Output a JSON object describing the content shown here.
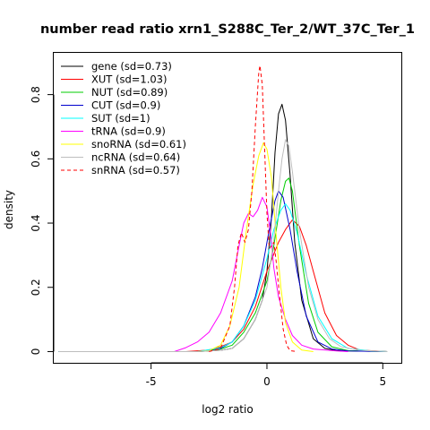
{
  "chart_data": {
    "type": "line",
    "title": "number read ratio xrn1_S288C_Ter_2/WT_37C_Ter_1",
    "xlabel": "log2 ratio",
    "ylabel": "density",
    "xlim": [
      -9.2,
      5.8
    ],
    "ylim": [
      -0.035,
      0.93
    ],
    "xticks": [
      -5,
      0,
      5
    ],
    "yticks": [
      0.0,
      0.2,
      0.4,
      0.6,
      0.8
    ],
    "grid": false,
    "legend_position": "top-left",
    "series": [
      {
        "name": "gene (sd=0.73)",
        "color": "#000000",
        "dash": "solid",
        "points": [
          [
            -9,
            0
          ],
          [
            -3,
            0
          ],
          [
            -2,
            0.004
          ],
          [
            -1.5,
            0.01
          ],
          [
            -1,
            0.04
          ],
          [
            -0.5,
            0.1
          ],
          [
            -0.2,
            0.16
          ],
          [
            0,
            0.25
          ],
          [
            0.2,
            0.42
          ],
          [
            0.35,
            0.62
          ],
          [
            0.5,
            0.74
          ],
          [
            0.65,
            0.77
          ],
          [
            0.8,
            0.72
          ],
          [
            1,
            0.55
          ],
          [
            1.2,
            0.34
          ],
          [
            1.5,
            0.16
          ],
          [
            2,
            0.04
          ],
          [
            2.5,
            0.01
          ],
          [
            3,
            0.003
          ],
          [
            5.2,
            0
          ]
        ]
      },
      {
        "name": "XUT (sd=1.03)",
        "color": "#ff0000",
        "dash": "solid",
        "points": [
          [
            -9,
            0
          ],
          [
            -3.5,
            0
          ],
          [
            -2.5,
            0.005
          ],
          [
            -2,
            0.015
          ],
          [
            -1.5,
            0.03
          ],
          [
            -1,
            0.07
          ],
          [
            -0.5,
            0.14
          ],
          [
            0,
            0.25
          ],
          [
            0.5,
            0.34
          ],
          [
            0.8,
            0.38
          ],
          [
            1.1,
            0.41
          ],
          [
            1.4,
            0.39
          ],
          [
            1.7,
            0.33
          ],
          [
            2,
            0.25
          ],
          [
            2.5,
            0.12
          ],
          [
            3,
            0.05
          ],
          [
            3.5,
            0.02
          ],
          [
            4,
            0.005
          ],
          [
            5.2,
            0
          ]
        ]
      },
      {
        "name": "NUT (sd=0.89)",
        "color": "#00cd00",
        "dash": "solid",
        "points": [
          [
            -9,
            0
          ],
          [
            -3,
            0
          ],
          [
            -2,
            0.008
          ],
          [
            -1.5,
            0.02
          ],
          [
            -1,
            0.06
          ],
          [
            -0.5,
            0.12
          ],
          [
            0,
            0.22
          ],
          [
            0.3,
            0.33
          ],
          [
            0.6,
            0.47
          ],
          [
            0.8,
            0.53
          ],
          [
            0.95,
            0.54
          ],
          [
            1.1,
            0.5
          ],
          [
            1.4,
            0.33
          ],
          [
            1.8,
            0.15
          ],
          [
            2.2,
            0.06
          ],
          [
            2.8,
            0.015
          ],
          [
            3.5,
            0.003
          ],
          [
            5.2,
            0
          ]
        ]
      },
      {
        "name": "CUT (sd=0.9)",
        "color": "#0000cd",
        "dash": "solid",
        "points": [
          [
            -9,
            0
          ],
          [
            -3,
            0
          ],
          [
            -2,
            0.01
          ],
          [
            -1.5,
            0.03
          ],
          [
            -1,
            0.08
          ],
          [
            -0.5,
            0.17
          ],
          [
            -0.2,
            0.26
          ],
          [
            0.1,
            0.38
          ],
          [
            0.35,
            0.47
          ],
          [
            0.5,
            0.5
          ],
          [
            0.7,
            0.48
          ],
          [
            1,
            0.38
          ],
          [
            1.3,
            0.25
          ],
          [
            1.7,
            0.11
          ],
          [
            2.2,
            0.03
          ],
          [
            2.8,
            0.008
          ],
          [
            3.5,
            0.002
          ],
          [
            5.2,
            0
          ]
        ]
      },
      {
        "name": "SUT (sd=1)",
        "color": "#00ffff",
        "dash": "solid",
        "points": [
          [
            -9,
            0
          ],
          [
            -3,
            0
          ],
          [
            -2,
            0.012
          ],
          [
            -1.5,
            0.03
          ],
          [
            -1,
            0.08
          ],
          [
            -0.5,
            0.16
          ],
          [
            0,
            0.29
          ],
          [
            0.3,
            0.38
          ],
          [
            0.6,
            0.44
          ],
          [
            0.8,
            0.46
          ],
          [
            1,
            0.44
          ],
          [
            1.3,
            0.37
          ],
          [
            1.7,
            0.24
          ],
          [
            2.2,
            0.11
          ],
          [
            2.8,
            0.04
          ],
          [
            3.5,
            0.01
          ],
          [
            4.5,
            0.002
          ],
          [
            5.2,
            0
          ]
        ]
      },
      {
        "name": "tRNA (sd=0.9)",
        "color": "#ff00ff",
        "dash": "solid",
        "points": [
          [
            -4,
            0
          ],
          [
            -3.5,
            0.012
          ],
          [
            -3,
            0.03
          ],
          [
            -2.5,
            0.06
          ],
          [
            -2,
            0.12
          ],
          [
            -1.5,
            0.22
          ],
          [
            -1.2,
            0.33
          ],
          [
            -1,
            0.4
          ],
          [
            -0.8,
            0.43
          ],
          [
            -0.6,
            0.42
          ],
          [
            -0.4,
            0.44
          ],
          [
            -0.2,
            0.48
          ],
          [
            0,
            0.45
          ],
          [
            0.15,
            0.37
          ],
          [
            0.3,
            0.26
          ],
          [
            0.5,
            0.17
          ],
          [
            0.8,
            0.1
          ],
          [
            1.1,
            0.05
          ],
          [
            1.5,
            0.02
          ],
          [
            2,
            0.008
          ],
          [
            3,
            0.002
          ],
          [
            3.5,
            0
          ]
        ]
      },
      {
        "name": "snoRNA (sd=0.61)",
        "color": "#ffff00",
        "dash": "solid",
        "points": [
          [
            -3,
            0
          ],
          [
            -2.5,
            0.003
          ],
          [
            -2,
            0.02
          ],
          [
            -1.6,
            0.08
          ],
          [
            -1.2,
            0.2
          ],
          [
            -0.9,
            0.37
          ],
          [
            -0.6,
            0.52
          ],
          [
            -0.35,
            0.61
          ],
          [
            -0.15,
            0.65
          ],
          [
            0,
            0.63
          ],
          [
            0.2,
            0.54
          ],
          [
            0.4,
            0.36
          ],
          [
            0.6,
            0.2
          ],
          [
            0.8,
            0.09
          ],
          [
            1.1,
            0.03
          ],
          [
            1.5,
            0.005
          ],
          [
            2,
            0
          ]
        ]
      },
      {
        "name": "ncRNA (sd=0.64)",
        "color": "#bebebe",
        "dash": "solid",
        "points": [
          [
            -9,
            0
          ],
          [
            -3,
            0
          ],
          [
            -2,
            0.004
          ],
          [
            -1.5,
            0.01
          ],
          [
            -1,
            0.04
          ],
          [
            -0.5,
            0.1
          ],
          [
            0,
            0.2
          ],
          [
            0.3,
            0.35
          ],
          [
            0.5,
            0.5
          ],
          [
            0.65,
            0.6
          ],
          [
            0.8,
            0.66
          ],
          [
            0.95,
            0.64
          ],
          [
            1.1,
            0.56
          ],
          [
            1.4,
            0.38
          ],
          [
            1.8,
            0.2
          ],
          [
            2.2,
            0.1
          ],
          [
            2.7,
            0.04
          ],
          [
            3.2,
            0.015
          ],
          [
            4,
            0.004
          ],
          [
            5.2,
            0
          ]
        ]
      },
      {
        "name": "snRNA (sd=0.57)",
        "color": "#ff0000",
        "dash": "dashed",
        "points": [
          [
            -2.5,
            0
          ],
          [
            -2,
            0.01
          ],
          [
            -1.6,
            0.08
          ],
          [
            -1.4,
            0.2
          ],
          [
            -1.25,
            0.33
          ],
          [
            -1.1,
            0.37
          ],
          [
            -0.95,
            0.34
          ],
          [
            -0.8,
            0.38
          ],
          [
            -0.65,
            0.5
          ],
          [
            -0.5,
            0.7
          ],
          [
            -0.35,
            0.87
          ],
          [
            -0.3,
            0.89
          ],
          [
            -0.2,
            0.83
          ],
          [
            -0.1,
            0.63
          ],
          [
            0,
            0.43
          ],
          [
            0.1,
            0.32
          ],
          [
            0.2,
            0.33
          ],
          [
            0.3,
            0.34
          ],
          [
            0.4,
            0.28
          ],
          [
            0.55,
            0.17
          ],
          [
            0.7,
            0.07
          ],
          [
            0.85,
            0.02
          ],
          [
            1,
            0.003
          ],
          [
            1.3,
            0
          ]
        ]
      }
    ]
  }
}
